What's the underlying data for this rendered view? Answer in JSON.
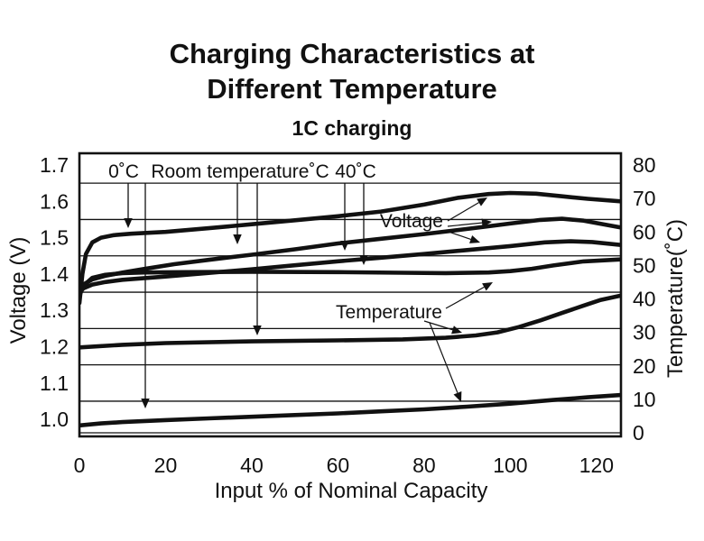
{
  "page": {
    "title_line1": "Charging Characteristics at",
    "title_line2": "Different Temperature",
    "subtitle": "1C charging"
  },
  "chart_data": {
    "type": "line",
    "title": "Charging Characteristics at Different Temperature",
    "subtitle": "1C charging",
    "xlabel": "Input % of Nominal Capacity",
    "ylabel_left": "Voltage (V)",
    "ylabel_right": "Temperature(˚C)",
    "x_ticks": [
      "0",
      "20",
      "40",
      "60",
      "80",
      "100",
      "120"
    ],
    "xlim": [
      0,
      125.7
    ],
    "ylim_left": [
      1.0,
      1.7
    ],
    "ylim_right": [
      0,
      80
    ],
    "y_ticks_left": [
      "1.7",
      "1.6",
      "1.5",
      "1.4",
      "1.3",
      "1.2",
      "1.1",
      "1.0"
    ],
    "y_ticks_right": [
      "80",
      "70",
      "60",
      "50",
      "40",
      "30",
      "20",
      "10",
      "0"
    ],
    "grid_voltage_lines": [
      1.65,
      1.55,
      1.45,
      1.35,
      1.25,
      1.15,
      1.05
    ],
    "grid_temp_lines": [
      0
    ],
    "legend": {
      "voltage_group_label": "Voltage",
      "temperature_group_label": "Temperature",
      "condition_labels": [
        "0˚C",
        "Room temperature˚C",
        "40˚C"
      ]
    },
    "series": [
      {
        "name": "voltage-0c",
        "condition": "0˚C",
        "axis": "left",
        "unit": "V",
        "x": [
          0,
          0.7,
          1.5,
          3,
          5,
          8,
          12,
          20,
          30,
          40,
          50,
          60,
          70,
          80,
          88,
          95,
          100,
          106,
          112,
          118,
          125.7
        ],
        "y": [
          1.32,
          1.4,
          1.455,
          1.487,
          1.5,
          1.507,
          1.511,
          1.516,
          1.526,
          1.537,
          1.548,
          1.559,
          1.572,
          1.591,
          1.61,
          1.62,
          1.623,
          1.621,
          1.614,
          1.607,
          1.6
        ]
      },
      {
        "name": "voltage-room",
        "condition": "Room temperature˚C",
        "axis": "left",
        "unit": "V",
        "x": [
          0,
          1,
          3,
          6,
          10,
          15,
          22,
          30,
          40,
          50,
          60,
          70,
          80,
          90,
          100,
          107,
          112,
          117,
          121,
          125.7
        ],
        "y": [
          1.355,
          1.372,
          1.385,
          1.395,
          1.404,
          1.414,
          1.427,
          1.439,
          1.453,
          1.468,
          1.484,
          1.497,
          1.51,
          1.524,
          1.539,
          1.549,
          1.552,
          1.547,
          1.538,
          1.528
        ]
      },
      {
        "name": "voltage-40c",
        "condition": "40˚C",
        "axis": "left",
        "unit": "V",
        "x": [
          0,
          1,
          3,
          6,
          10,
          20,
          30,
          40,
          50,
          60,
          70,
          80,
          90,
          100,
          108,
          114,
          119,
          125.7
        ],
        "y": [
          1.35,
          1.361,
          1.371,
          1.378,
          1.384,
          1.393,
          1.403,
          1.413,
          1.424,
          1.435,
          1.445,
          1.455,
          1.466,
          1.477,
          1.487,
          1.49,
          1.488,
          1.48
        ]
      },
      {
        "name": "temperature-40c",
        "condition": "40˚C",
        "axis": "right",
        "unit": "˚C",
        "x": [
          0,
          1,
          3,
          6,
          10,
          15,
          25,
          40,
          60,
          75,
          85,
          95,
          100,
          105,
          110,
          117,
          125.7
        ],
        "y": [
          41,
          44,
          46.3,
          47.2,
          47.7,
          47.9,
          48.0,
          48.1,
          48.0,
          47.8,
          47.7,
          47.9,
          48.3,
          49.0,
          50.0,
          51.2,
          51.8
        ]
      },
      {
        "name": "temperature-room",
        "condition": "Room temperature˚C",
        "axis": "right",
        "unit": "˚C",
        "x": [
          0,
          10,
          20,
          40,
          60,
          75,
          85,
          92,
          97,
          102,
          107,
          112,
          117,
          121,
          125.7
        ],
        "y": [
          25.5,
          26.3,
          26.8,
          27.3,
          27.6,
          27.9,
          28.4,
          29.1,
          30.0,
          31.6,
          33.6,
          35.8,
          38.0,
          39.7,
          41.0
        ]
      },
      {
        "name": "temperature-0c",
        "condition": "0˚C",
        "axis": "right",
        "unit": "˚C",
        "x": [
          0,
          5,
          10,
          20,
          30,
          40,
          50,
          60,
          70,
          80,
          90,
          100,
          110,
          118,
          125.7
        ],
        "y": [
          2.2,
          2.8,
          3.2,
          3.8,
          4.3,
          4.8,
          5.3,
          5.8,
          6.4,
          7.0,
          7.8,
          8.7,
          9.8,
          10.6,
          11.3
        ]
      }
    ],
    "colors": {
      "ink": "#111111",
      "background": "#ffffff"
    },
    "layout_hints": {
      "grid": "horizontal-only",
      "legend_position": "inside-annotations"
    }
  }
}
